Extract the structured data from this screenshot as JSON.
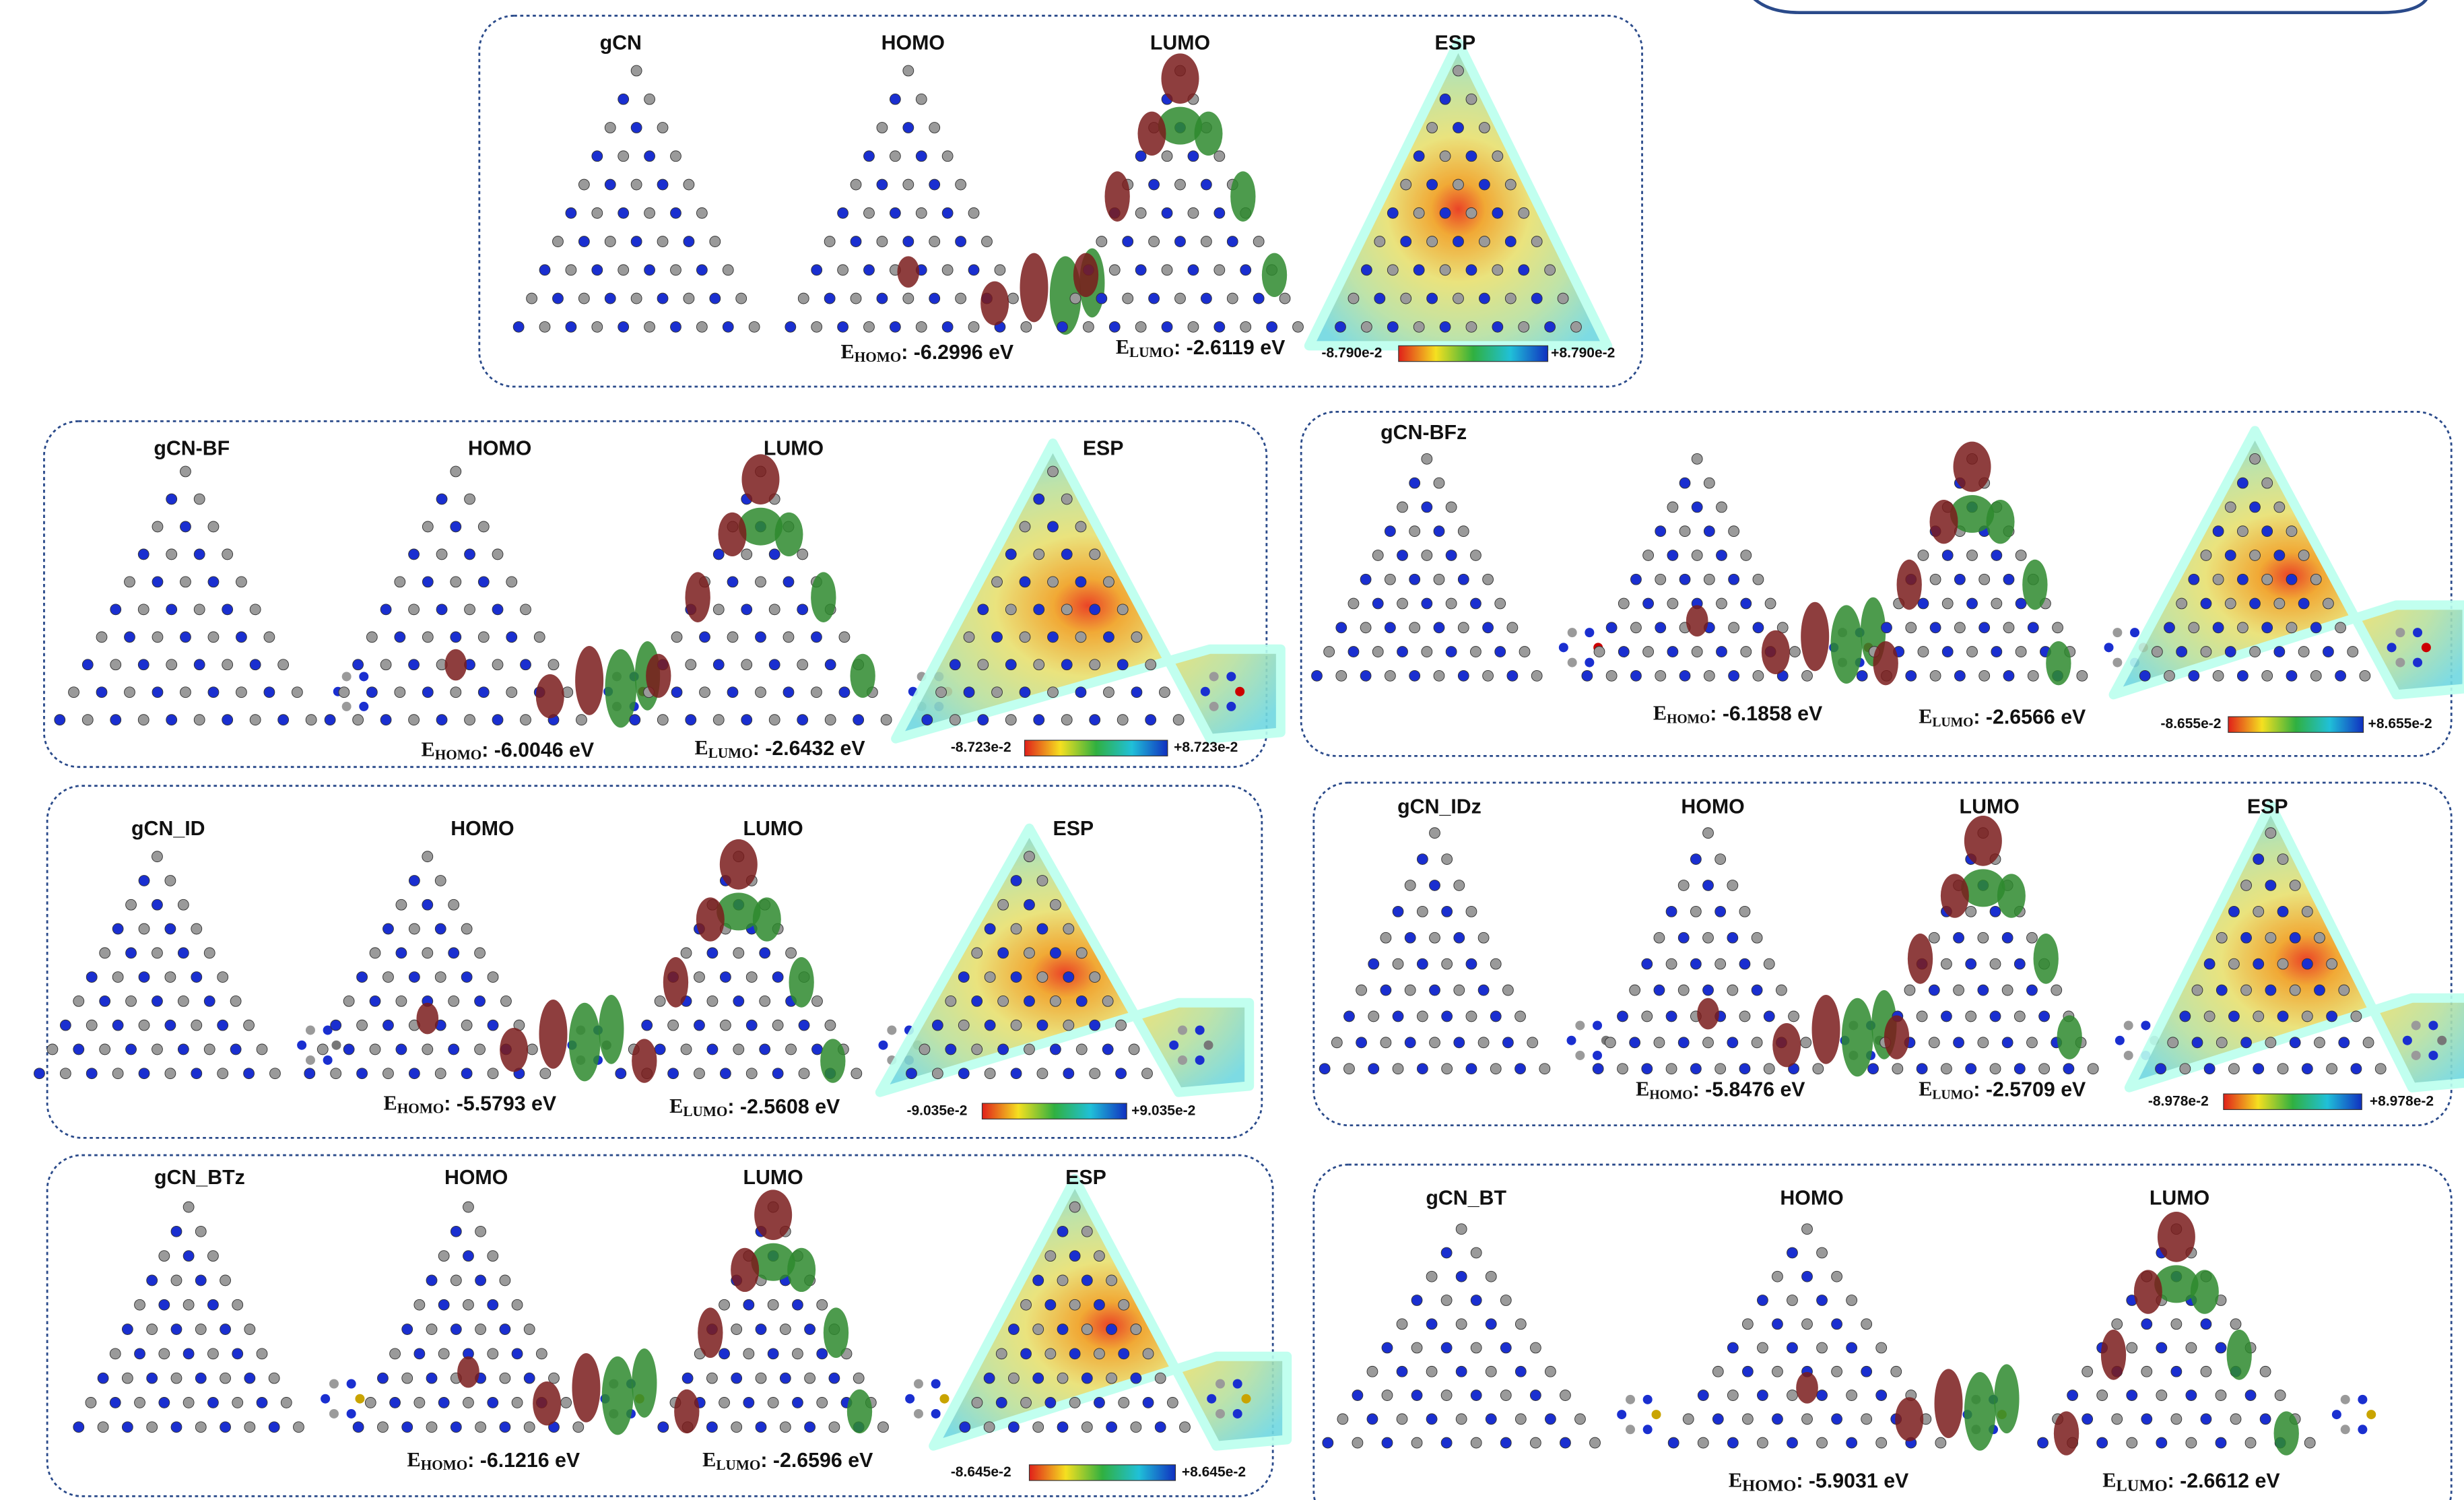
{
  "panels": [
    {
      "title": "gCN",
      "columns": [
        "HOMO",
        "LUMO",
        "ESP"
      ],
      "energies": [
        {
          "symbol": "E",
          "sub": "HOMO",
          "text": ": -6.2996 eV"
        },
        {
          "symbol": "E",
          "sub": "LUMO",
          "text": ": -2.6119 eV"
        }
      ],
      "esp_scale": {
        "min": "-8.790e-2",
        "max": "+8.790e-2"
      }
    },
    {
      "title": "gCN-BF",
      "columns": [
        "HOMO",
        "LUMO",
        "ESP"
      ],
      "energies": [
        {
          "symbol": "E",
          "sub": "HOMO",
          "text": ": -6.0046 eV"
        },
        {
          "symbol": "E",
          "sub": "LUMO",
          "text": ": -2.6432 eV"
        }
      ],
      "esp_scale": {
        "min": "-8.723e-2",
        "max": "+8.723e-2"
      }
    },
    {
      "title": "gCN-BFz",
      "columns": [],
      "energies": [
        {
          "symbol": "E",
          "sub": "HOMO",
          "text": ": -6.1858 eV"
        },
        {
          "symbol": "E",
          "sub": "LUMO",
          "text": ": -2.6566 eV"
        }
      ],
      "esp_scale": {
        "min": "-8.655e-2",
        "max": "+8.655e-2"
      }
    },
    {
      "title": "gCN_ID",
      "columns": [
        "HOMO",
        "LUMO",
        "ESP"
      ],
      "energies": [
        {
          "symbol": "E",
          "sub": "HOMO",
          "text": ": -5.5793 eV"
        },
        {
          "symbol": "E",
          "sub": "LUMO",
          "text": ": -2.5608 eV"
        }
      ],
      "esp_scale": {
        "min": "-9.035e-2",
        "max": "+9.035e-2"
      }
    },
    {
      "title": "gCN_IDz",
      "columns": [
        "HOMO",
        "LUMO",
        "ESP"
      ],
      "energies": [
        {
          "symbol": "E",
          "sub": "HOMO",
          "text": ": -5.8476 eV"
        },
        {
          "symbol": "E",
          "sub": "LUMO",
          "text": ": -2.5709 eV"
        }
      ],
      "esp_scale": {
        "min": "-8.978e-2",
        "max": "+8.978e-2"
      }
    },
    {
      "title": "gCN_BTz",
      "columns": [
        "HOMO",
        "LUMO",
        "ESP"
      ],
      "energies": [
        {
          "symbol": "E",
          "sub": "HOMO",
          "text": ": -6.1216 eV"
        },
        {
          "symbol": "E",
          "sub": "LUMO",
          "text": ": -2.6596 eV"
        }
      ],
      "esp_scale": {
        "min": "-8.645e-2",
        "max": "+8.645e-2"
      }
    },
    {
      "title": "gCN_BT",
      "columns": [
        "HOMO",
        "LUMO"
      ],
      "energies": [
        {
          "symbol": "E",
          "sub": "HOMO",
          "text": ": -5.9031 eV"
        },
        {
          "symbol": "E",
          "sub": "LUMO",
          "text": ": -2.6612 eV"
        }
      ]
    }
  ]
}
